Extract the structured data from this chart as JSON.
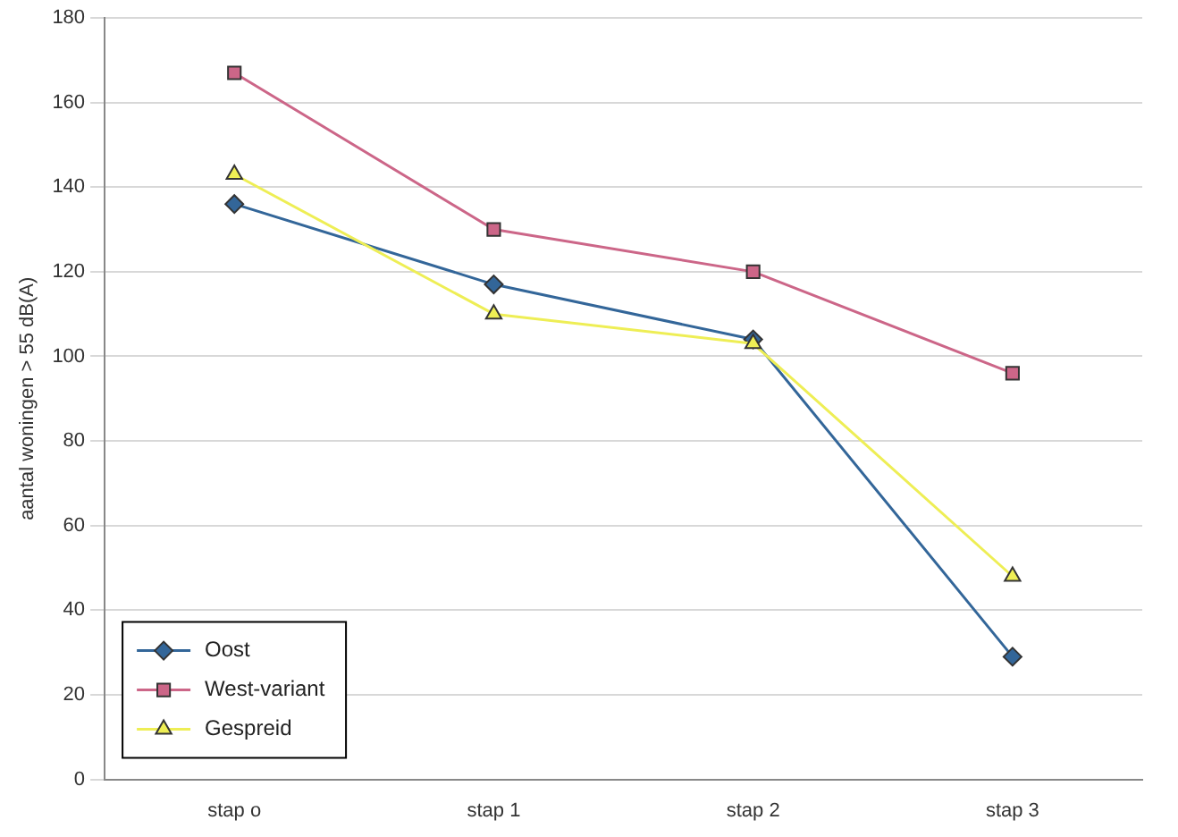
{
  "chart_data": {
    "type": "line",
    "ylabel": "aantal woningen > 55 dB(A)",
    "categories": [
      "stap o",
      "stap 1",
      "stap 2",
      "stap 3"
    ],
    "series": [
      {
        "name": "Oost",
        "color": "#336699",
        "marker": "diamond",
        "values": [
          136,
          117,
          104,
          29
        ]
      },
      {
        "name": "West-variant",
        "color": "#cc6688",
        "marker": "square",
        "values": [
          167,
          130,
          120,
          96
        ]
      },
      {
        "name": "Gespreid",
        "color": "#eeee55",
        "marker": "triangle",
        "values": [
          143,
          110,
          103,
          48
        ]
      }
    ],
    "ylim": [
      0,
      180
    ],
    "yticks": [
      0,
      20,
      40,
      60,
      80,
      100,
      120,
      140,
      160,
      180
    ],
    "grid": "y",
    "legend": "bottom left",
    "line_style": "solid"
  }
}
